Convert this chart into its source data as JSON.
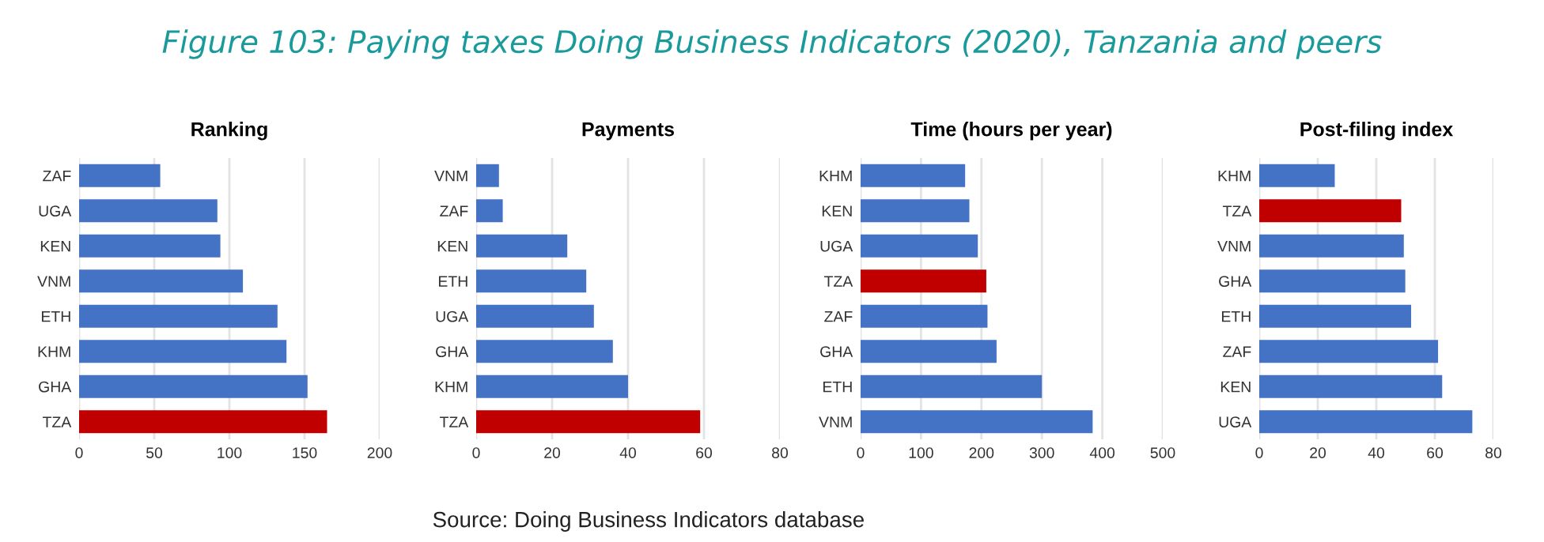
{
  "chart_data": [
    {
      "type": "bar",
      "orientation": "horizontal",
      "title": "Ranking",
      "annotations": [
        "Figure 103: Paying taxes Doing Business Indicators (2020), Tanzania and peers",
        "Source: Doing Business Indicators database"
      ],
      "categories": [
        "ZAF",
        "UGA",
        "KEN",
        "VNM",
        "ETH",
        "KHM",
        "GHA",
        "TZA"
      ],
      "values": [
        54,
        92,
        94,
        109,
        132,
        138,
        152,
        165
      ],
      "colors": [
        "#4472c4",
        "#4472c4",
        "#4472c4",
        "#4472c4",
        "#4472c4",
        "#4472c4",
        "#4472c4",
        "#c00000"
      ],
      "xlim": [
        0,
        200
      ],
      "xticks": [
        0,
        50,
        100,
        150,
        200
      ],
      "grid": "x"
    },
    {
      "type": "bar",
      "orientation": "horizontal",
      "title": "Payments",
      "categories": [
        "VNM",
        "ZAF",
        "KEN",
        "ETH",
        "UGA",
        "GHA",
        "KHM",
        "TZA"
      ],
      "values": [
        6,
        7,
        24,
        29,
        31,
        36,
        40,
        59
      ],
      "colors": [
        "#4472c4",
        "#4472c4",
        "#4472c4",
        "#4472c4",
        "#4472c4",
        "#4472c4",
        "#4472c4",
        "#c00000"
      ],
      "xlim": [
        0,
        80
      ],
      "xticks": [
        0,
        20,
        40,
        60,
        80
      ],
      "grid": "x"
    },
    {
      "type": "bar",
      "orientation": "horizontal",
      "title": "Time (hours per year)",
      "categories": [
        "KHM",
        "KEN",
        "UGA",
        "TZA",
        "ZAF",
        "GHA",
        "ETH",
        "VNM"
      ],
      "values": [
        173,
        180,
        194,
        208,
        210,
        225,
        300,
        384
      ],
      "colors": [
        "#4472c4",
        "#4472c4",
        "#4472c4",
        "#c00000",
        "#4472c4",
        "#4472c4",
        "#4472c4",
        "#4472c4"
      ],
      "xlim": [
        0,
        500
      ],
      "xticks": [
        0,
        100,
        200,
        300,
        400,
        500
      ],
      "grid": "x"
    },
    {
      "type": "bar",
      "orientation": "horizontal",
      "title": "Post-filing index",
      "categories": [
        "KHM",
        "TZA",
        "VNM",
        "GHA",
        "ETH",
        "ZAF",
        "KEN",
        "UGA"
      ],
      "values": [
        25.8,
        48.5,
        49.4,
        49.9,
        51.9,
        61.1,
        62.5,
        72.8
      ],
      "colors": [
        "#4472c4",
        "#c00000",
        "#4472c4",
        "#4472c4",
        "#4472c4",
        "#4472c4",
        "#4472c4",
        "#4472c4"
      ],
      "xlim": [
        0,
        80
      ],
      "xticks": [
        0,
        20,
        40,
        60,
        80
      ],
      "grid": "x"
    }
  ]
}
